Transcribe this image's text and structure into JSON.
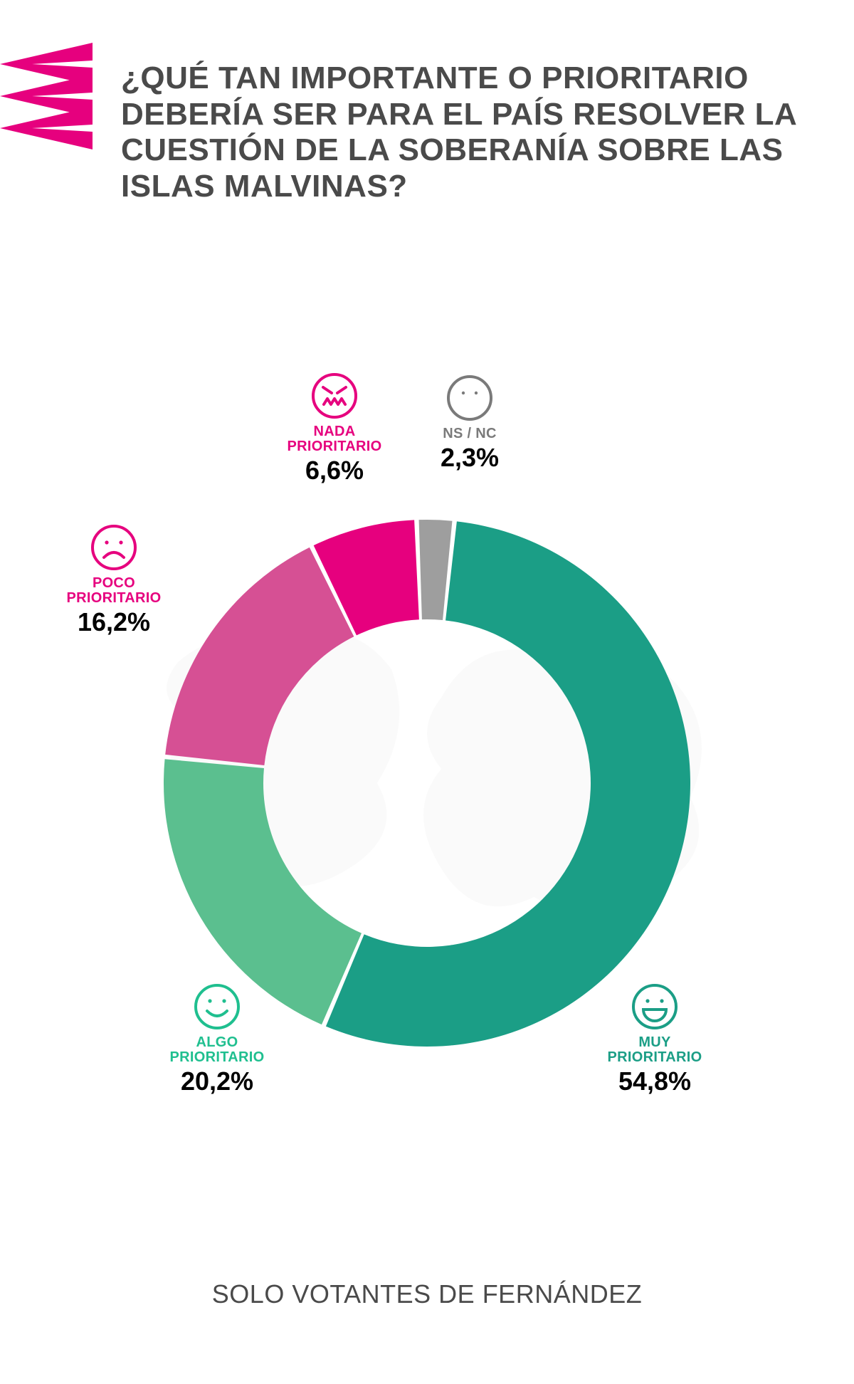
{
  "title": "¿QUÉ TAN IMPORTANTE O PRIORITARIO DEBERÍA SER PARA EL PAÍS RESOLVER LA CUESTIÓN DE LA SOBERANÍA SOBRE LAS ISLAS MALVINAS?",
  "footer": "SOLO VOTANTES DE FERNÁNDEZ",
  "logo_color": "#e6007e",
  "title_color": "#4a4a4a",
  "background_color": "#ffffff",
  "map_silhouette_color": "#cccccc",
  "donut": {
    "type": "donut",
    "outer_radius": 370,
    "inner_radius": 230,
    "gap_deg": 1.0,
    "start_angle_deg": 6,
    "segments": [
      {
        "key": "muy",
        "label": "MUY PRIORITARIO",
        "value": 54.8,
        "pct_display": "54,8%",
        "color": "#1b9e86",
        "label_color": "#1b9e86",
        "icon": "laugh"
      },
      {
        "key": "algo",
        "label": "ALGO PRIORITARIO",
        "value": 20.2,
        "pct_display": "20,2%",
        "color": "#5bbf8f",
        "label_color": "#1fbf8f",
        "icon": "smile"
      },
      {
        "key": "poco",
        "label": "POCO PRIORITARIO",
        "value": 16.2,
        "pct_display": "16,2%",
        "color": "#d65094",
        "label_color": "#e6007e",
        "icon": "frown"
      },
      {
        "key": "nada",
        "label": "NADA PRIORITARIO",
        "value": 6.6,
        "pct_display": "6,6%",
        "color": "#e6007e",
        "label_color": "#e6007e",
        "icon": "angry"
      },
      {
        "key": "nsnc",
        "label": "NS / NC",
        "value": 2.3,
        "pct_display": "2,3%",
        "color": "#9e9e9e",
        "label_color": "#7a7a7a",
        "icon": "neutral"
      }
    ]
  },
  "label_cat_fontsize": 20,
  "label_pct_fontsize": 36,
  "icon_radius": 30,
  "icon_stroke_width": 4
}
